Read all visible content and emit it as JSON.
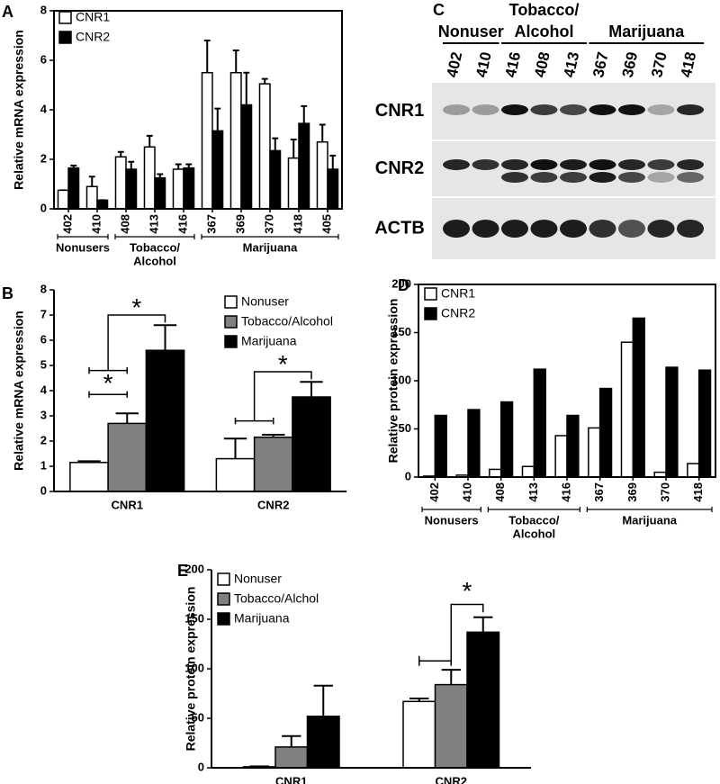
{
  "chart_data": [
    {
      "type": "bar",
      "label": "A",
      "ylabel": "Relative mRNA expression",
      "categories": [
        "402",
        "410",
        "408",
        "413",
        "416",
        "367",
        "369",
        "370",
        "418",
        "405"
      ],
      "groups": [
        {
          "lines": [
            "Nonusers"
          ],
          "members": [
            "402",
            "410"
          ]
        },
        {
          "lines": [
            "Tobacco/",
            "Alcohol"
          ],
          "members": [
            "408",
            "413",
            "416"
          ]
        },
        {
          "lines": [
            "Marijuana"
          ],
          "members": [
            "367",
            "369",
            "370",
            "418",
            "405"
          ]
        }
      ],
      "series": [
        {
          "name": "CNR1",
          "color": "#ffffff",
          "values": [
            0.75,
            0.9,
            2.1,
            2.5,
            1.6,
            5.5,
            5.5,
            5.05,
            2.05,
            2.7
          ],
          "errors": [
            0,
            0.4,
            0.2,
            0.45,
            0.2,
            1.3,
            0.9,
            0.2,
            0.75,
            0.7
          ]
        },
        {
          "name": "CNR2",
          "color": "#000000",
          "values": [
            1.65,
            0.35,
            1.6,
            1.25,
            1.65,
            3.15,
            4.2,
            2.35,
            3.45,
            1.6
          ],
          "errors": [
            0.1,
            0,
            0.3,
            0.15,
            0.15,
            0.9,
            1.3,
            0.5,
            0.7,
            0.55
          ]
        }
      ],
      "ylim": [
        0,
        8
      ],
      "yticks": [
        0,
        2,
        4,
        6,
        8
      ],
      "legend": "upper left",
      "frame": true,
      "rotate_categories": true
    },
    {
      "type": "bar",
      "label": "B",
      "ylabel": "Relative mRNA expression",
      "categories": [
        "CNR1",
        "CNR2"
      ],
      "series": [
        {
          "name": "Nonuser",
          "color": "#ffffff",
          "values": [
            1.15,
            1.3
          ],
          "errors": [
            0.05,
            0.8
          ]
        },
        {
          "name": "Tobacco/Alcohol",
          "color": "#808080",
          "values": [
            2.7,
            2.15
          ],
          "errors": [
            0.4,
            0.1
          ]
        },
        {
          "name": "Marijuana",
          "color": "#000000",
          "values": [
            5.6,
            3.75
          ],
          "errors": [
            1.0,
            0.6
          ]
        }
      ],
      "ylim": [
        0,
        8
      ],
      "yticks": [
        0,
        1,
        2,
        3,
        4,
        5,
        6,
        7,
        8
      ],
      "legend": "upper right",
      "frame": false,
      "rotate_categories": false,
      "annotations": [
        "*",
        "*",
        "*"
      ]
    },
    {
      "type": "bar",
      "label": "D",
      "ylabel": "Relative protein expression",
      "categories": [
        "402",
        "410",
        "408",
        "413",
        "416",
        "367",
        "369",
        "370",
        "418"
      ],
      "groups": [
        {
          "lines": [
            "Nonusers"
          ],
          "members": [
            "402",
            "410"
          ]
        },
        {
          "lines": [
            "Tobacco/",
            "Alcohol"
          ],
          "members": [
            "408",
            "413",
            "416"
          ]
        },
        {
          "lines": [
            "Marijuana"
          ],
          "members": [
            "367",
            "369",
            "370",
            "418"
          ]
        }
      ],
      "series": [
        {
          "name": "CNR1",
          "color": "#ffffff",
          "values": [
            1,
            2,
            8,
            11,
            43,
            51,
            140,
            5,
            14
          ]
        },
        {
          "name": "CNR2",
          "color": "#000000",
          "values": [
            64,
            70,
            78,
            112,
            64,
            92,
            165,
            114,
            111
          ]
        }
      ],
      "ylim": [
        0,
        200
      ],
      "yticks": [
        0,
        50,
        100,
        150,
        200
      ],
      "legend": "upper left",
      "frame": true,
      "rotate_categories": true
    },
    {
      "type": "bar",
      "label": "E",
      "ylabel": "Relative protein expression",
      "categories": [
        "CNR1",
        "CNR2"
      ],
      "series": [
        {
          "name": "Nonuser",
          "color": "#ffffff",
          "values": [
            1,
            67
          ],
          "errors": [
            0.5,
            3
          ]
        },
        {
          "name": "Tobacco/Alchol",
          "color": "#808080",
          "values": [
            21,
            84
          ],
          "errors": [
            11,
            15
          ]
        },
        {
          "name": "Marijuana",
          "color": "#000000",
          "values": [
            52,
            137
          ],
          "errors": [
            31,
            15
          ]
        }
      ],
      "ylim": [
        0,
        200
      ],
      "yticks": [
        0,
        50,
        100,
        150,
        200
      ],
      "legend": "upper left",
      "frame": false,
      "rotate_categories": false,
      "annotations": [
        "*"
      ]
    }
  ],
  "blot": {
    "label": "C",
    "groups": [
      {
        "lines": [
          "Nonuser"
        ],
        "members": [
          "402",
          "410"
        ]
      },
      {
        "lines": [
          "Tobacco/",
          "Alcohol"
        ],
        "members": [
          "416",
          "408",
          "413"
        ]
      },
      {
        "lines": [
          "Marijuana"
        ],
        "members": [
          "367",
          "369",
          "370",
          "418"
        ]
      }
    ],
    "lanes": [
      "402",
      "410",
      "416",
      "408",
      "413",
      "367",
      "369",
      "370",
      "418"
    ],
    "rows": [
      "CNR1",
      "CNR2",
      "ACTB"
    ]
  }
}
